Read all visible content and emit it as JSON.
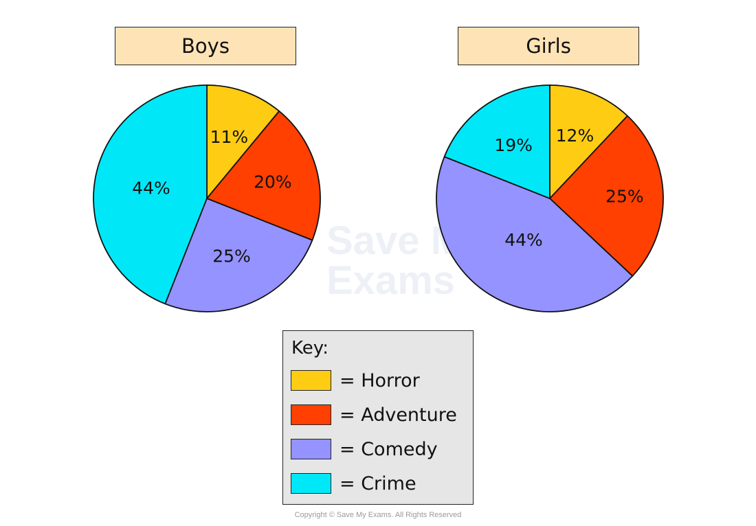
{
  "chart_data": [
    {
      "type": "pie",
      "title": "Boys",
      "categories": [
        "Horror",
        "Adventure",
        "Comedy",
        "Crime"
      ],
      "values": [
        11,
        20,
        25,
        44
      ],
      "labels": [
        "11%",
        "20%",
        "25%",
        "44%"
      ]
    },
    {
      "type": "pie",
      "title": "Girls",
      "categories": [
        "Horror",
        "Adventure",
        "Comedy",
        "Crime"
      ],
      "values": [
        12,
        25,
        44,
        19
      ],
      "labels": [
        "12%",
        "25%",
        "44%",
        "19%"
      ]
    }
  ],
  "colors": {
    "Horror": "#ffcc14",
    "Adventure": "#ff4000",
    "Comedy": "#9493ff",
    "Crime": "#00e8f8",
    "title_box": "#fde3b6"
  },
  "legend": {
    "title": "Key:",
    "placement": "bottom-center",
    "items": [
      {
        "category": "Horror",
        "label": "= Horror"
      },
      {
        "category": "Adventure",
        "label": "= Adventure"
      },
      {
        "category": "Comedy",
        "label": "= Comedy"
      },
      {
        "category": "Crime",
        "label": "= Crime"
      }
    ]
  },
  "watermark": {
    "line1": "Save My",
    "line2": "Exams"
  },
  "copyright": "Copyright © Save My Exams. All Rights Reserved"
}
